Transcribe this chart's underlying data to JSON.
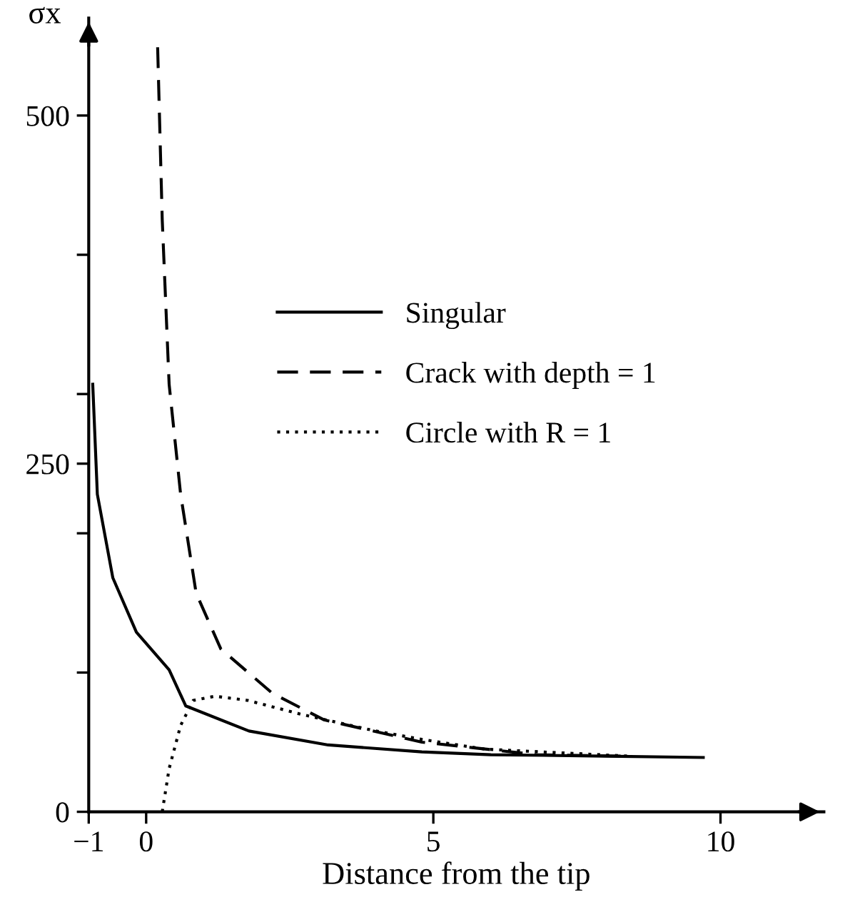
{
  "chart_data": {
    "type": "line",
    "xlabel": "Distance from the tip",
    "ylabel": "σx",
    "xlim": [
      -1,
      11.8
    ],
    "ylim": [
      0,
      570
    ],
    "xticks": [
      -1,
      0,
      5,
      10
    ],
    "yticks": [
      0,
      {
        "value": 100,
        "label": null
      },
      {
        "value": 200,
        "label": null
      },
      250,
      {
        "value": 300,
        "label": null
      },
      {
        "value": 400,
        "label": null
      },
      500
    ],
    "grid": false,
    "legend": "right",
    "marker": "none",
    "series": [
      {
        "name": "Singular",
        "color": "#000000",
        "line_style": "solid",
        "x": [
          -0.93,
          -0.85,
          -0.58,
          -0.17,
          0.4,
          0.69,
          1.79,
          3.17,
          4.8,
          6.0,
          8.0,
          9.7
        ],
        "values": [
          307,
          228,
          168,
          129,
          102,
          76,
          58,
          48,
          43,
          41,
          40,
          39
        ]
      },
      {
        "name": "Crack with depth = 1",
        "color": "#000000",
        "line_style": "dashed",
        "x": [
          0.2,
          0.28,
          0.4,
          0.6,
          0.87,
          1.3,
          2.2,
          3.1,
          4.8,
          5.7,
          6.8,
          8.3
        ],
        "values": [
          549,
          425,
          307,
          228,
          157,
          117,
          85,
          66,
          50,
          46,
          41,
          40
        ]
      },
      {
        "name": "Circle with R = 1",
        "color": "#000000",
        "line_style": "dotted",
        "x": [
          0.28,
          0.4,
          0.6,
          0.82,
          1.2,
          1.77,
          2.7,
          4.0,
          4.8,
          5.9,
          8.4
        ],
        "values": [
          0,
          31,
          62,
          80,
          83,
          80,
          70,
          58,
          52,
          45,
          40
        ]
      }
    ]
  }
}
